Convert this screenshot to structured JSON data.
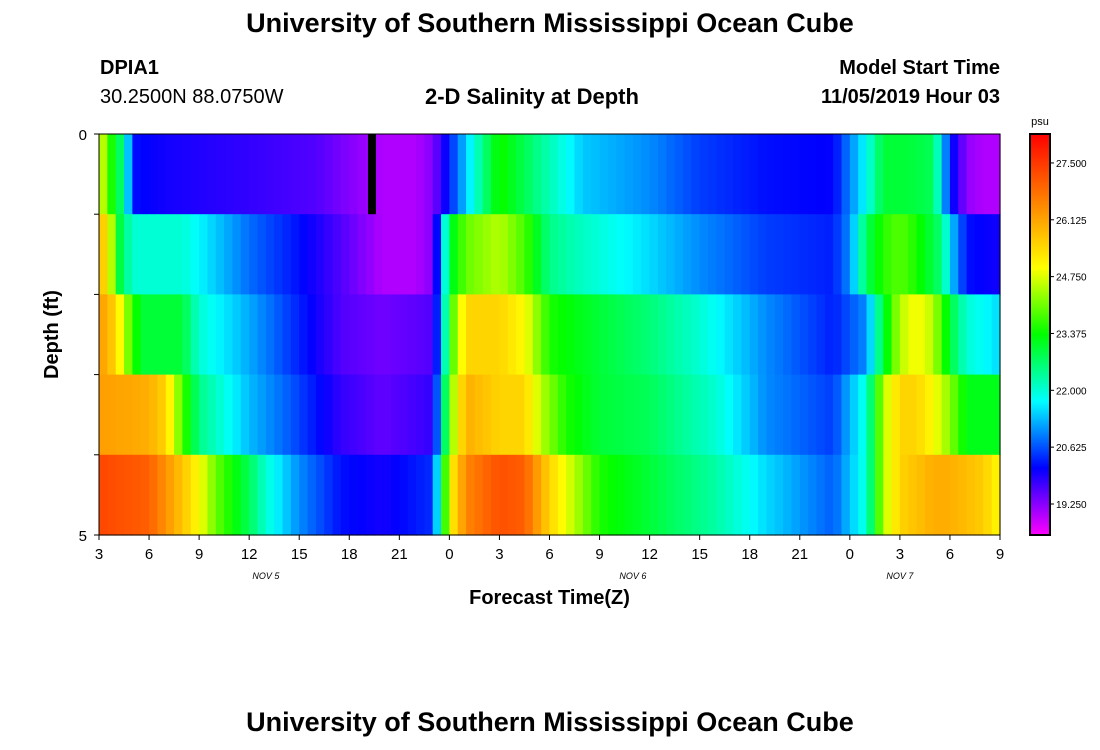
{
  "page": {
    "title_top": "University of Southern Mississippi Ocean Cube",
    "title_bottom": "University of Southern Mississippi Ocean Cube",
    "station": "DPIA1",
    "coordinates": "30.2500N 88.0750W",
    "chart_title": "2-D Salinity at Depth",
    "model_start_label": "Model Start Time",
    "model_start_value": "11/05/2019 Hour 03"
  },
  "colors": {
    "colormap": [
      "#ff00ff",
      "#0000ff",
      "#00ffff",
      "#00ff00",
      "#ffff00",
      "#ff8000",
      "#ff0000"
    ],
    "missing": "#000000"
  },
  "chart_data": {
    "type": "heatmap",
    "title": "2-D Salinity at Depth",
    "xlabel": "Forecast Time(Z)",
    "ylabel": "Depth (ft)",
    "x_ticks": [
      "3",
      "6",
      "9",
      "12",
      "15",
      "18",
      "21",
      "0",
      "3",
      "6",
      "9",
      "12",
      "15",
      "18",
      "21",
      "0",
      "3",
      "6",
      "9"
    ],
    "x_hours_since_start": [
      0,
      3,
      6,
      9,
      12,
      15,
      18,
      21,
      24,
      27,
      30,
      33,
      36,
      39,
      42,
      45,
      48,
      51,
      54
    ],
    "date_labels": [
      {
        "text": "NOV 5",
        "hour": 10
      },
      {
        "text": "NOV 6",
        "hour": 32
      },
      {
        "text": "NOV 7",
        "hour": 48
      }
    ],
    "xlim": [
      0,
      54
    ],
    "y_ticks": [
      "0",
      "5"
    ],
    "ylim": [
      0,
      5
    ],
    "depth_levels": 5,
    "colorbar": {
      "unit": "psu",
      "labels": [
        "27.500",
        "26.125",
        "24.750",
        "23.375",
        "22.000",
        "20.625",
        "19.250"
      ],
      "range": [
        18.5,
        28.2
      ]
    },
    "missing_cell": {
      "hour": 16,
      "depth_row": 0
    },
    "series": [
      {
        "name": "layer 1",
        "hours": [
          0,
          0.5,
          1,
          1.5,
          2,
          4,
          9,
          13,
          15.5,
          17,
          19,
          20,
          21,
          23,
          24,
          26,
          27.5,
          29,
          33,
          36,
          40,
          44,
          46,
          47,
          48.5,
          50,
          51,
          52,
          53,
          54
        ],
        "values": [
          25,
          24,
          23,
          22.5,
          20.2,
          20.0,
          19.8,
          19.6,
          19.2,
          19.0,
          19.0,
          19.3,
          20.3,
          22.5,
          23.5,
          22.6,
          22.0,
          21.4,
          21.0,
          20.5,
          20.2,
          20.1,
          21.8,
          23.0,
          23.0,
          22.8,
          20.3,
          19.2,
          19.0,
          19.0
        ]
      },
      {
        "name": "layer 2",
        "hours": [
          0,
          0.6,
          1.2,
          2,
          5,
          9,
          12,
          14.5,
          17,
          19,
          20,
          20.5,
          21,
          22,
          24,
          25.5,
          27,
          29,
          33,
          36,
          40,
          44,
          45,
          46,
          47,
          48,
          49,
          50.5,
          51,
          52,
          54
        ],
        "values": [
          26,
          25,
          23,
          22.0,
          22.0,
          20.8,
          20.2,
          19.6,
          19.0,
          19.0,
          19.3,
          21.0,
          23.0,
          24.0,
          24.5,
          23.8,
          22.5,
          22.1,
          21.5,
          21.0,
          20.5,
          20.3,
          21.0,
          22.8,
          23.6,
          23.9,
          23.5,
          22.6,
          21.5,
          20.2,
          20.0
        ]
      },
      {
        "name": "layer 3",
        "hours": [
          0,
          1,
          1.5,
          2.5,
          5,
          6,
          9,
          11,
          14.5,
          17,
          20,
          20.5,
          21,
          22,
          24,
          25.5,
          27,
          30,
          33,
          36,
          40,
          44,
          46,
          47,
          48,
          49,
          50,
          51,
          52,
          54
        ],
        "values": [
          26.3,
          25.5,
          24.5,
          23.0,
          23.0,
          22.0,
          21.2,
          20.6,
          19.6,
          19.4,
          19.6,
          21.0,
          23.5,
          25.5,
          25.5,
          25.0,
          23.5,
          23.0,
          22.6,
          22.0,
          21.0,
          20.3,
          21.0,
          23.0,
          24.5,
          25.0,
          24.5,
          23.0,
          22.0,
          21.5
        ]
      },
      {
        "name": "layer 4",
        "hours": [
          0,
          3,
          4,
          5,
          6,
          9,
          11,
          14.5,
          17,
          20,
          20.5,
          21,
          22,
          24,
          25.5,
          26.5,
          28,
          30,
          33,
          37,
          40,
          44,
          46,
          47,
          48,
          49,
          50,
          51,
          52,
          54
        ],
        "values": [
          26.2,
          26.0,
          25.5,
          23.8,
          22.5,
          21.3,
          20.8,
          19.8,
          19.5,
          19.8,
          21.5,
          24.0,
          26.0,
          25.5,
          25.5,
          24.5,
          23.5,
          23.0,
          22.8,
          22.0,
          21.0,
          20.5,
          22.0,
          24.5,
          25.5,
          25.5,
          25.0,
          24.2,
          23.2,
          23.2
        ]
      },
      {
        "name": "layer 5",
        "hours": [
          0,
          3,
          5,
          6,
          7,
          9,
          10,
          12,
          14.5,
          17,
          20,
          20.5,
          21,
          22,
          24,
          25.5,
          27,
          30,
          33,
          37,
          40,
          44,
          46,
          47,
          48,
          50,
          51,
          52,
          53,
          54
        ],
        "values": [
          27.3,
          27.0,
          25.7,
          25.0,
          24.0,
          22.8,
          22.0,
          21.0,
          20.2,
          20.0,
          20.4,
          22.5,
          25.0,
          26.5,
          27.2,
          27.0,
          25.5,
          23.5,
          23.0,
          22.3,
          21.5,
          20.7,
          22.0,
          24.5,
          25.5,
          26.0,
          26.0,
          25.8,
          25.6,
          25.0
        ]
      }
    ]
  }
}
